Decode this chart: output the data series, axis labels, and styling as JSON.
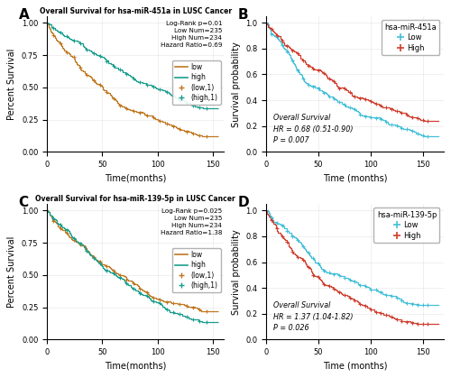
{
  "panel_A": {
    "title": "Overall Survival for hsa-miR-451a in LUSC Cancer",
    "stats": "Log-Rank p=0.01\nLow Num=235\nHigh Num=234\nHazard Ratio=0.69",
    "xlabel": "Time(months)",
    "ylabel": "Percent Survival",
    "low_color": "#C07820",
    "high_color": "#1A9E8E",
    "xlim": [
      0,
      160
    ],
    "ylim": [
      0,
      1.05
    ],
    "xticks": [
      0,
      50,
      100,
      150
    ],
    "yticks": [
      0.0,
      0.25,
      0.5,
      0.75,
      1.0
    ],
    "low_scale": 70,
    "high_scale": 110,
    "low_floor": 0.12,
    "high_floor": 0.22
  },
  "panel_B": {
    "title": "hsa-miR-451a",
    "low_label": "Low",
    "high_label": "High",
    "annotation": "Overall Survival\nHR = 0.68 (0.51-0.90)\nP = 0.007",
    "xlabel": "Time (months)",
    "ylabel": "Survival probability",
    "low_color": "#45C0D8",
    "high_color": "#D04030",
    "xlim": [
      0,
      170
    ],
    "ylim": [
      0.0,
      1.05
    ],
    "xticks": [
      0,
      50,
      100,
      150
    ],
    "yticks": [
      0.0,
      0.2,
      0.4,
      0.6,
      0.8,
      1.0
    ],
    "low_scale": 75,
    "high_scale": 110,
    "low_floor": 0.05,
    "high_floor": 0.22
  },
  "panel_C": {
    "title": "Overall Survival for hsa-miR-139-5p in LUSC Cancer",
    "stats": "Log-Rank p=0.025\nLow Num=235\nHigh Num=234\nHazard Ratio=1.38",
    "xlabel": "Time(months)",
    "ylabel": "Percent Survival",
    "low_color": "#C07820",
    "high_color": "#1A9E8E",
    "xlim": [
      0,
      160
    ],
    "ylim": [
      0,
      1.05
    ],
    "xticks": [
      0,
      50,
      100,
      150
    ],
    "yticks": [
      0.0,
      0.25,
      0.5,
      0.75,
      1.0
    ],
    "low_scale": 100,
    "high_scale": 70,
    "low_floor": 0.18,
    "high_floor": 0.12
  },
  "panel_D": {
    "title": "hsa-miR-139-5p",
    "low_label": "Low",
    "high_label": "High",
    "annotation": "Overall Survival\nHR = 1.37 (1.04-1.82)\nP = 0.026",
    "xlabel": "Time (months)",
    "ylabel": "Survival probability",
    "low_color": "#45C0D8",
    "high_color": "#D04030",
    "xlim": [
      0,
      170
    ],
    "ylim": [
      0.0,
      1.05
    ],
    "xticks": [
      0,
      50,
      100,
      150
    ],
    "yticks": [
      0.0,
      0.2,
      0.4,
      0.6,
      0.8,
      1.0
    ],
    "low_scale": 110,
    "high_scale": 72,
    "low_floor": 0.2,
    "high_floor": 0.03
  },
  "background_color": "#ffffff",
  "grid_color": "#cccccc"
}
